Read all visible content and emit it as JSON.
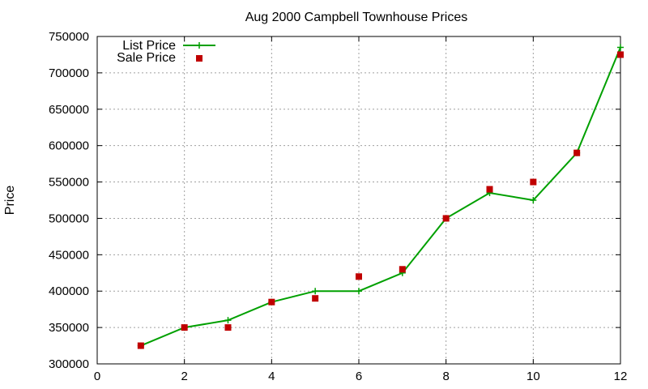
{
  "chart_data": {
    "type": "line",
    "title": "Aug 2000 Campbell Townhouse Prices",
    "xlabel": "",
    "ylabel": "Price",
    "xlim": [
      0,
      12
    ],
    "ylim": [
      300000,
      750000
    ],
    "xticks": [
      0,
      2,
      4,
      6,
      8,
      10,
      12
    ],
    "yticks": [
      300000,
      350000,
      400000,
      450000,
      500000,
      550000,
      600000,
      650000,
      700000,
      750000
    ],
    "grid": true,
    "legend_position": "top-left",
    "series": [
      {
        "name": "List Price",
        "style": "line with plus markers",
        "color": "#00a000",
        "x": [
          1,
          2,
          3,
          4,
          5,
          6,
          7,
          8,
          9,
          10,
          11,
          12
        ],
        "y": [
          325000,
          350000,
          360000,
          385000,
          400000,
          400000,
          425000,
          500000,
          535000,
          525000,
          590000,
          735000
        ]
      },
      {
        "name": "Sale Price",
        "style": "square points",
        "color": "#c00000",
        "x": [
          1,
          2,
          3,
          4,
          5,
          6,
          7,
          8,
          9,
          10,
          11,
          12
        ],
        "y": [
          325000,
          350000,
          350000,
          385000,
          390000,
          420000,
          430000,
          500000,
          540000,
          550000,
          590000,
          725000
        ]
      }
    ]
  }
}
